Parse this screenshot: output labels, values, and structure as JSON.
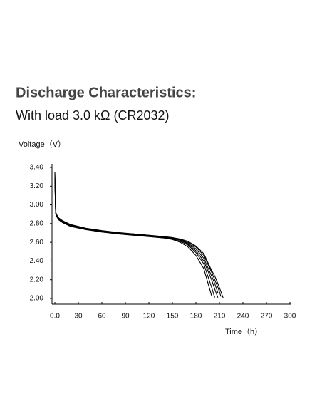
{
  "chart_data": {
    "type": "line",
    "title": "Discharge Characteristics:",
    "subtitle": "With load 3.0 kΩ (CR2032)",
    "y_label": "Voltage（V）",
    "x_label": "Time（h）",
    "x": [
      0,
      1,
      2,
      5,
      10,
      20,
      40,
      60,
      80,
      100,
      120,
      140,
      150,
      160,
      170,
      180,
      190,
      200,
      204,
      208,
      212,
      215
    ],
    "series": [
      {
        "color": "#000000",
        "values": [
          3.35,
          2.93,
          2.89,
          2.85,
          2.82,
          2.78,
          2.74,
          2.71,
          2.695,
          2.68,
          2.665,
          2.645,
          2.63,
          2.6,
          2.55,
          2.46,
          2.32,
          2.03,
          null,
          null,
          null,
          null
        ]
      },
      {
        "color": "#000000",
        "values": [
          3.3,
          2.92,
          2.88,
          2.84,
          2.81,
          2.77,
          2.735,
          2.71,
          2.69,
          2.675,
          2.66,
          2.645,
          2.635,
          2.61,
          2.57,
          2.49,
          2.37,
          2.12,
          2.01,
          null,
          null,
          null
        ]
      },
      {
        "color": "#000000",
        "values": [
          3.25,
          2.92,
          2.89,
          2.85,
          2.82,
          2.78,
          2.745,
          2.72,
          2.7,
          2.685,
          2.67,
          2.65,
          2.64,
          2.62,
          2.58,
          2.51,
          2.4,
          2.2,
          2.1,
          2.01,
          null,
          null
        ]
      },
      {
        "color": "#000000",
        "values": [
          3.28,
          2.91,
          2.88,
          2.84,
          2.81,
          2.775,
          2.74,
          2.715,
          2.7,
          2.685,
          2.67,
          2.655,
          2.645,
          2.625,
          2.59,
          2.53,
          2.43,
          2.24,
          2.16,
          2.06,
          null,
          null
        ]
      },
      {
        "color": "#000000",
        "values": [
          3.32,
          2.93,
          2.9,
          2.86,
          2.83,
          2.79,
          2.75,
          2.725,
          2.705,
          2.69,
          2.675,
          2.66,
          2.65,
          2.63,
          2.6,
          2.55,
          2.46,
          2.28,
          2.2,
          2.12,
          2.02,
          null
        ]
      },
      {
        "color": "#000000",
        "values": [
          3.34,
          2.92,
          2.89,
          2.85,
          2.82,
          2.785,
          2.745,
          2.72,
          2.7,
          2.69,
          2.675,
          2.66,
          2.65,
          2.635,
          2.61,
          2.56,
          2.48,
          2.3,
          2.24,
          2.16,
          2.07,
          2.0
        ]
      }
    ],
    "xlim": [
      0,
      300
    ],
    "xticks": [
      {
        "value": 0,
        "label": "0.0"
      },
      30,
      60,
      90,
      120,
      150,
      180,
      210,
      240,
      270,
      300
    ],
    "ylim": [
      2.0,
      3.4
    ],
    "yticks": [
      {
        "value": 2.0,
        "label": "2.00"
      },
      {
        "value": 2.2,
        "label": "2.20"
      },
      {
        "value": 2.4,
        "label": "2.40"
      },
      {
        "value": 2.6,
        "label": "2.60"
      },
      {
        "value": 2.8,
        "label": "2.80"
      },
      {
        "value": 3.0,
        "label": "3.00"
      },
      {
        "value": 3.2,
        "label": "3.20"
      },
      {
        "value": 3.4,
        "label": "3.40"
      }
    ]
  }
}
